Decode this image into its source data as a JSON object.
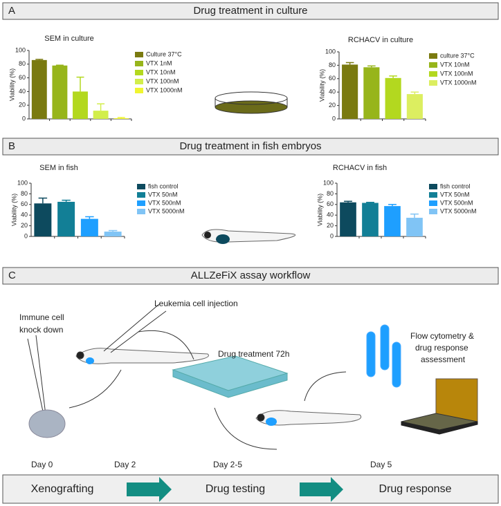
{
  "panels": [
    {
      "letter": "A",
      "title": "Drug treatment in culture"
    },
    {
      "letter": "B",
      "title": "Drug treatment in fish embryos"
    },
    {
      "letter": "C",
      "title": "ALLZeFiX assay workflow"
    }
  ],
  "chart_data": [
    {
      "type": "bar",
      "title": "SEM in culture",
      "ylabel": "Viability (%)",
      "categories": [
        "Culture 37°C",
        "VTX 1nM",
        "VTX 10nM",
        "VTX 100nM",
        "VTX 1000nM"
      ],
      "values": [
        86,
        78,
        40,
        12,
        1
      ],
      "errors": [
        1,
        0.5,
        21,
        10,
        1
      ],
      "colors": [
        "#7a7a10",
        "#97b51b",
        "#b3d81f",
        "#d2ee4a",
        "#f0f530"
      ],
      "ylim": [
        0,
        100
      ],
      "yticks": [
        0,
        20,
        40,
        60,
        80,
        100
      ]
    },
    {
      "type": "bar",
      "title": "RCHACV in culture",
      "ylabel": "Viability (%)",
      "categories": [
        "culture 37°C",
        "VTX 10nM",
        "VTX 100nM",
        "VTX 1000nM"
      ],
      "values": [
        81,
        77,
        61,
        37
      ],
      "errors": [
        3,
        2,
        3,
        3
      ],
      "colors": [
        "#7a7a10",
        "#97b51b",
        "#b3d81f",
        "#dcee60"
      ],
      "ylim": [
        0,
        100
      ],
      "yticks": [
        0,
        20,
        40,
        60,
        80,
        100
      ]
    },
    {
      "type": "bar",
      "title": "SEM in fish",
      "ylabel": "Viability (%)",
      "categories": [
        "fish control",
        "VTX 50nM",
        "VTX 500nM",
        "VTX 5000nM"
      ],
      "values": [
        62,
        65,
        33,
        9
      ],
      "errors": [
        10,
        3,
        4,
        2
      ],
      "colors": [
        "#0d4a5e",
        "#127f96",
        "#1e9fff",
        "#80c4f5"
      ],
      "ylim": [
        0,
        100
      ],
      "yticks": [
        0,
        20,
        40,
        60,
        80,
        100
      ]
    },
    {
      "type": "bar",
      "title": "RCHACV in fish",
      "ylabel": "Viability (%)",
      "categories": [
        "fish control",
        "VTX 50nM",
        "VTX 500nM",
        "VTX 5000nM"
      ],
      "values": [
        64,
        63,
        57,
        35
      ],
      "errors": [
        2,
        1,
        3,
        7
      ],
      "colors": [
        "#0d4a5e",
        "#127f96",
        "#1e9fff",
        "#80c4f5"
      ],
      "ylim": [
        0,
        100
      ],
      "yticks": [
        0,
        20,
        40,
        60,
        80,
        100
      ]
    }
  ],
  "workflow": {
    "steps": [
      [
        "Immune cell",
        "knock down"
      ],
      [
        "Leukemia cell injection"
      ],
      [
        "Drug treatment 72h"
      ],
      [
        "Flow cytometry &",
        "drug response",
        "assessment"
      ]
    ],
    "days": [
      "Day 0",
      "Day 2",
      "Day 2-5",
      "Day 5"
    ],
    "phases": [
      "Xenografting",
      "Drug testing",
      "Drug response"
    ]
  }
}
